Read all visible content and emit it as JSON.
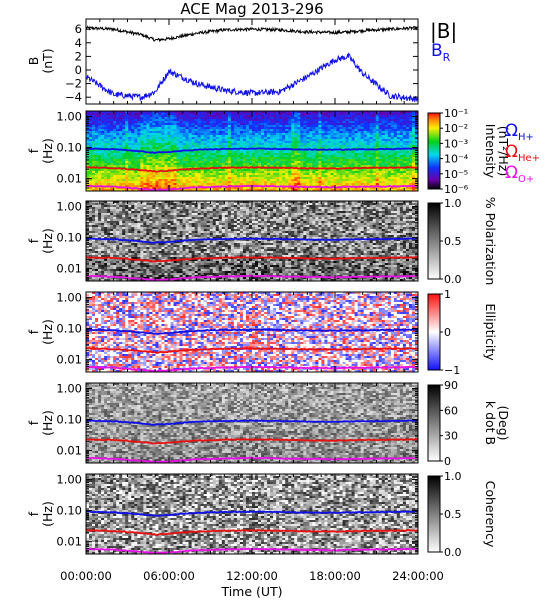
{
  "title": "ACE Mag 2013-296",
  "x_axis": {
    "label": "Time (UT)",
    "ticks": [
      "00:00:00",
      "06:00:00",
      "12:00:00",
      "18:00:00",
      "24:00:00"
    ]
  },
  "colors": {
    "H": "#1010e8",
    "He": "#e81010",
    "O": "#e810e8",
    "B_total": "#000000",
    "B_R": "#1010e8"
  },
  "legend": {
    "b_total": "|B|",
    "b_r_main": "B",
    "b_r_sub": "R",
    "omega": "Ω",
    "h_sub": "H+",
    "he_sub": "He+",
    "o_sub": "O+"
  },
  "panels": [
    {
      "id": "b",
      "ylabel": "B",
      "yunit": "(nT)",
      "yticks": [
        "6",
        "4",
        "2",
        "0",
        "−2",
        "−4"
      ]
    },
    {
      "id": "intensity",
      "ylabel": "f",
      "yunit": "(Hz)",
      "yticks": [
        "1.00",
        "0.10",
        "0.01"
      ],
      "colorbar": {
        "label": "Intensity",
        "unit": "(nT²/Hz)",
        "ticks": [
          "10⁻¹",
          "10⁻²",
          "10⁻³",
          "10⁻⁴",
          "10⁻⁵",
          "10⁻⁶"
        ]
      }
    },
    {
      "id": "polarization",
      "ylabel": "f",
      "yunit": "(Hz)",
      "yticks": [
        "1.00",
        "0.10",
        "0.01"
      ],
      "colorbar": {
        "label": "% Polarization",
        "unit": "",
        "ticks": [
          "1.0",
          "0.5",
          "0.0"
        ]
      }
    },
    {
      "id": "ellipticity",
      "ylabel": "f",
      "yunit": "(Hz)",
      "yticks": [
        "1.00",
        "0.10",
        "0.01"
      ],
      "colorbar": {
        "label": "Ellipticity",
        "unit": "",
        "ticks": [
          "1",
          "0",
          "−1"
        ]
      }
    },
    {
      "id": "kdotb",
      "ylabel": "f",
      "yunit": "(Hz)",
      "yticks": [
        "1.00",
        "0.10",
        "0.01"
      ],
      "colorbar": {
        "label": "k dot B",
        "unit": "(Deg)",
        "ticks": [
          "90",
          "60",
          "30",
          "0"
        ]
      }
    },
    {
      "id": "coherency",
      "ylabel": "f",
      "yunit": "(Hz)",
      "yticks": [
        "1.00",
        "0.10",
        "0.01"
      ],
      "colorbar": {
        "label": "Coherency",
        "unit": "",
        "ticks": [
          "1.0",
          "0.5",
          "0.0"
        ]
      }
    }
  ],
  "chart_data": {
    "type": "heatmap",
    "title": "ACE Mag 2013-296",
    "xlabel": "Time (UT)",
    "x_hours": [
      0,
      2,
      4,
      5,
      6,
      8,
      10,
      12,
      14,
      16,
      18,
      19,
      20,
      22,
      24
    ],
    "timeseries": {
      "ylabel": "B (nT)",
      "ylim": [
        -5,
        7.5
      ],
      "series": [
        {
          "name": "|B|",
          "values": [
            6.2,
            6.0,
            5.2,
            4.4,
            4.6,
            5.4,
            5.9,
            6.0,
            5.9,
            5.6,
            5.5,
            5.6,
            5.8,
            6.0,
            6.2
          ]
        },
        {
          "name": "BR",
          "values": [
            -1.0,
            -3.6,
            -4.0,
            -3.2,
            -0.2,
            -2.0,
            -3.0,
            -3.4,
            -3.2,
            -1.0,
            1.5,
            2.0,
            -0.5,
            -3.8,
            -4.3
          ]
        }
      ]
    },
    "frequency_axis": {
      "ylabel": "f (Hz)",
      "scale": "log",
      "ylim": [
        0.004,
        1.5
      ]
    },
    "gyrofrequency_lines": {
      "x_hours": [
        0,
        2,
        4,
        5,
        6,
        8,
        10,
        12,
        14,
        16,
        18,
        20,
        22,
        24
      ],
      "series": [
        {
          "name": "ΩH+",
          "values": [
            0.092,
            0.088,
            0.075,
            0.068,
            0.072,
            0.085,
            0.09,
            0.092,
            0.09,
            0.086,
            0.085,
            0.088,
            0.09,
            0.093
          ]
        },
        {
          "name": "ΩHe+",
          "values": [
            0.023,
            0.022,
            0.019,
            0.017,
            0.018,
            0.021,
            0.0225,
            0.023,
            0.0225,
            0.0215,
            0.021,
            0.022,
            0.0225,
            0.023
          ]
        },
        {
          "name": "ΩO+",
          "values": [
            0.0058,
            0.0055,
            0.0047,
            0.0043,
            0.0045,
            0.0053,
            0.0056,
            0.0058,
            0.0056,
            0.0054,
            0.0053,
            0.0055,
            0.0056,
            0.0058
          ]
        }
      ]
    },
    "colorbars": [
      {
        "panel": "Intensity",
        "unit": "nT²/Hz",
        "scale": "log",
        "range": [
          1e-06,
          0.1
        ]
      },
      {
        "panel": "% Polarization",
        "range": [
          0,
          1
        ]
      },
      {
        "panel": "Ellipticity",
        "range": [
          -1,
          1
        ]
      },
      {
        "panel": "k dot B",
        "unit": "Deg",
        "range": [
          0,
          90
        ]
      },
      {
        "panel": "Coherency",
        "range": [
          0,
          1
        ]
      }
    ]
  }
}
